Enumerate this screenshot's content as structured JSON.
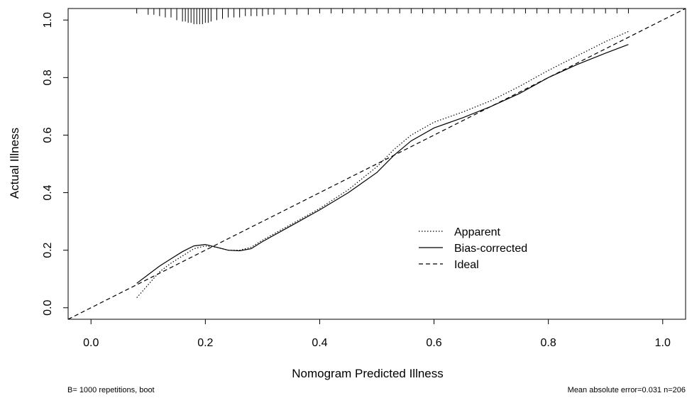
{
  "chart_data": {
    "type": "line",
    "title": "",
    "xlabel": "Nomogram Predicted Illness",
    "ylabel": "Actual Illness",
    "xlim": [
      -0.04,
      1.04
    ],
    "ylim": [
      -0.04,
      1.04
    ],
    "xticks": [
      0.0,
      0.2,
      0.4,
      0.6,
      0.8,
      1.0
    ],
    "xtick_labels": [
      "0.0",
      "0.2",
      "0.4",
      "0.6",
      "0.8",
      "1.0"
    ],
    "yticks": [
      0.0,
      0.2,
      0.4,
      0.6,
      0.8,
      1.0
    ],
    "ytick_labels": [
      "0.0",
      "0.2",
      "0.4",
      "0.6",
      "0.8",
      "1.0"
    ],
    "grid": false,
    "legend_position": "lower-right",
    "series": [
      {
        "name": "Apparent",
        "line_style": "dotted",
        "points": [
          [
            0.08,
            0.035
          ],
          [
            0.1,
            0.08
          ],
          [
            0.12,
            0.125
          ],
          [
            0.14,
            0.155
          ],
          [
            0.16,
            0.18
          ],
          [
            0.18,
            0.205
          ],
          [
            0.2,
            0.215
          ],
          [
            0.22,
            0.21
          ],
          [
            0.24,
            0.2
          ],
          [
            0.26,
            0.2
          ],
          [
            0.28,
            0.21
          ],
          [
            0.3,
            0.235
          ],
          [
            0.35,
            0.29
          ],
          [
            0.4,
            0.345
          ],
          [
            0.45,
            0.41
          ],
          [
            0.5,
            0.49
          ],
          [
            0.53,
            0.55
          ],
          [
            0.56,
            0.6
          ],
          [
            0.6,
            0.645
          ],
          [
            0.65,
            0.68
          ],
          [
            0.7,
            0.72
          ],
          [
            0.75,
            0.77
          ],
          [
            0.8,
            0.825
          ],
          [
            0.85,
            0.875
          ],
          [
            0.9,
            0.925
          ],
          [
            0.94,
            0.96
          ]
        ]
      },
      {
        "name": "Bias-corrected",
        "line_style": "solid",
        "points": [
          [
            0.08,
            0.085
          ],
          [
            0.1,
            0.115
          ],
          [
            0.12,
            0.145
          ],
          [
            0.14,
            0.17
          ],
          [
            0.16,
            0.195
          ],
          [
            0.18,
            0.215
          ],
          [
            0.2,
            0.22
          ],
          [
            0.22,
            0.21
          ],
          [
            0.24,
            0.2
          ],
          [
            0.26,
            0.198
          ],
          [
            0.28,
            0.205
          ],
          [
            0.3,
            0.23
          ],
          [
            0.35,
            0.285
          ],
          [
            0.4,
            0.34
          ],
          [
            0.45,
            0.4
          ],
          [
            0.5,
            0.47
          ],
          [
            0.53,
            0.53
          ],
          [
            0.56,
            0.58
          ],
          [
            0.6,
            0.625
          ],
          [
            0.65,
            0.66
          ],
          [
            0.7,
            0.7
          ],
          [
            0.75,
            0.745
          ],
          [
            0.8,
            0.8
          ],
          [
            0.85,
            0.845
          ],
          [
            0.9,
            0.885
          ],
          [
            0.94,
            0.915
          ]
        ]
      },
      {
        "name": "Ideal",
        "line_style": "dashed",
        "points": [
          [
            -0.04,
            -0.04
          ],
          [
            1.04,
            1.04
          ]
        ]
      }
    ],
    "rug_x": [
      0.08,
      0.1,
      0.11,
      0.12,
      0.13,
      0.14,
      0.15,
      0.16,
      0.165,
      0.17,
      0.175,
      0.18,
      0.185,
      0.19,
      0.195,
      0.2,
      0.205,
      0.21,
      0.22,
      0.23,
      0.24,
      0.25,
      0.26,
      0.27,
      0.28,
      0.29,
      0.3,
      0.31,
      0.32,
      0.34,
      0.36,
      0.38,
      0.4,
      0.42,
      0.44,
      0.46,
      0.48,
      0.5,
      0.52,
      0.54,
      0.56,
      0.58,
      0.6,
      0.62,
      0.64,
      0.66,
      0.68,
      0.7,
      0.72,
      0.74,
      0.76,
      0.78,
      0.8,
      0.82,
      0.84,
      0.86,
      0.88,
      0.9,
      0.92,
      0.94
    ],
    "rug_counts": [
      1,
      2,
      2,
      3,
      4,
      4,
      6,
      7,
      7,
      8,
      8,
      9,
      9,
      9,
      9,
      8,
      8,
      7,
      6,
      5,
      4,
      4,
      4,
      3,
      3,
      3,
      3,
      2,
      2,
      2,
      2,
      2,
      1,
      1,
      1,
      1,
      1,
      1,
      1,
      1,
      1,
      1,
      1,
      1,
      1,
      1,
      1,
      1,
      1,
      1,
      1,
      1,
      1,
      1,
      1,
      1,
      1,
      1,
      1,
      1
    ],
    "footnote_left": "B= 1000 repetitions, boot",
    "footnote_right": "Mean absolute error=0.031 n=206"
  }
}
